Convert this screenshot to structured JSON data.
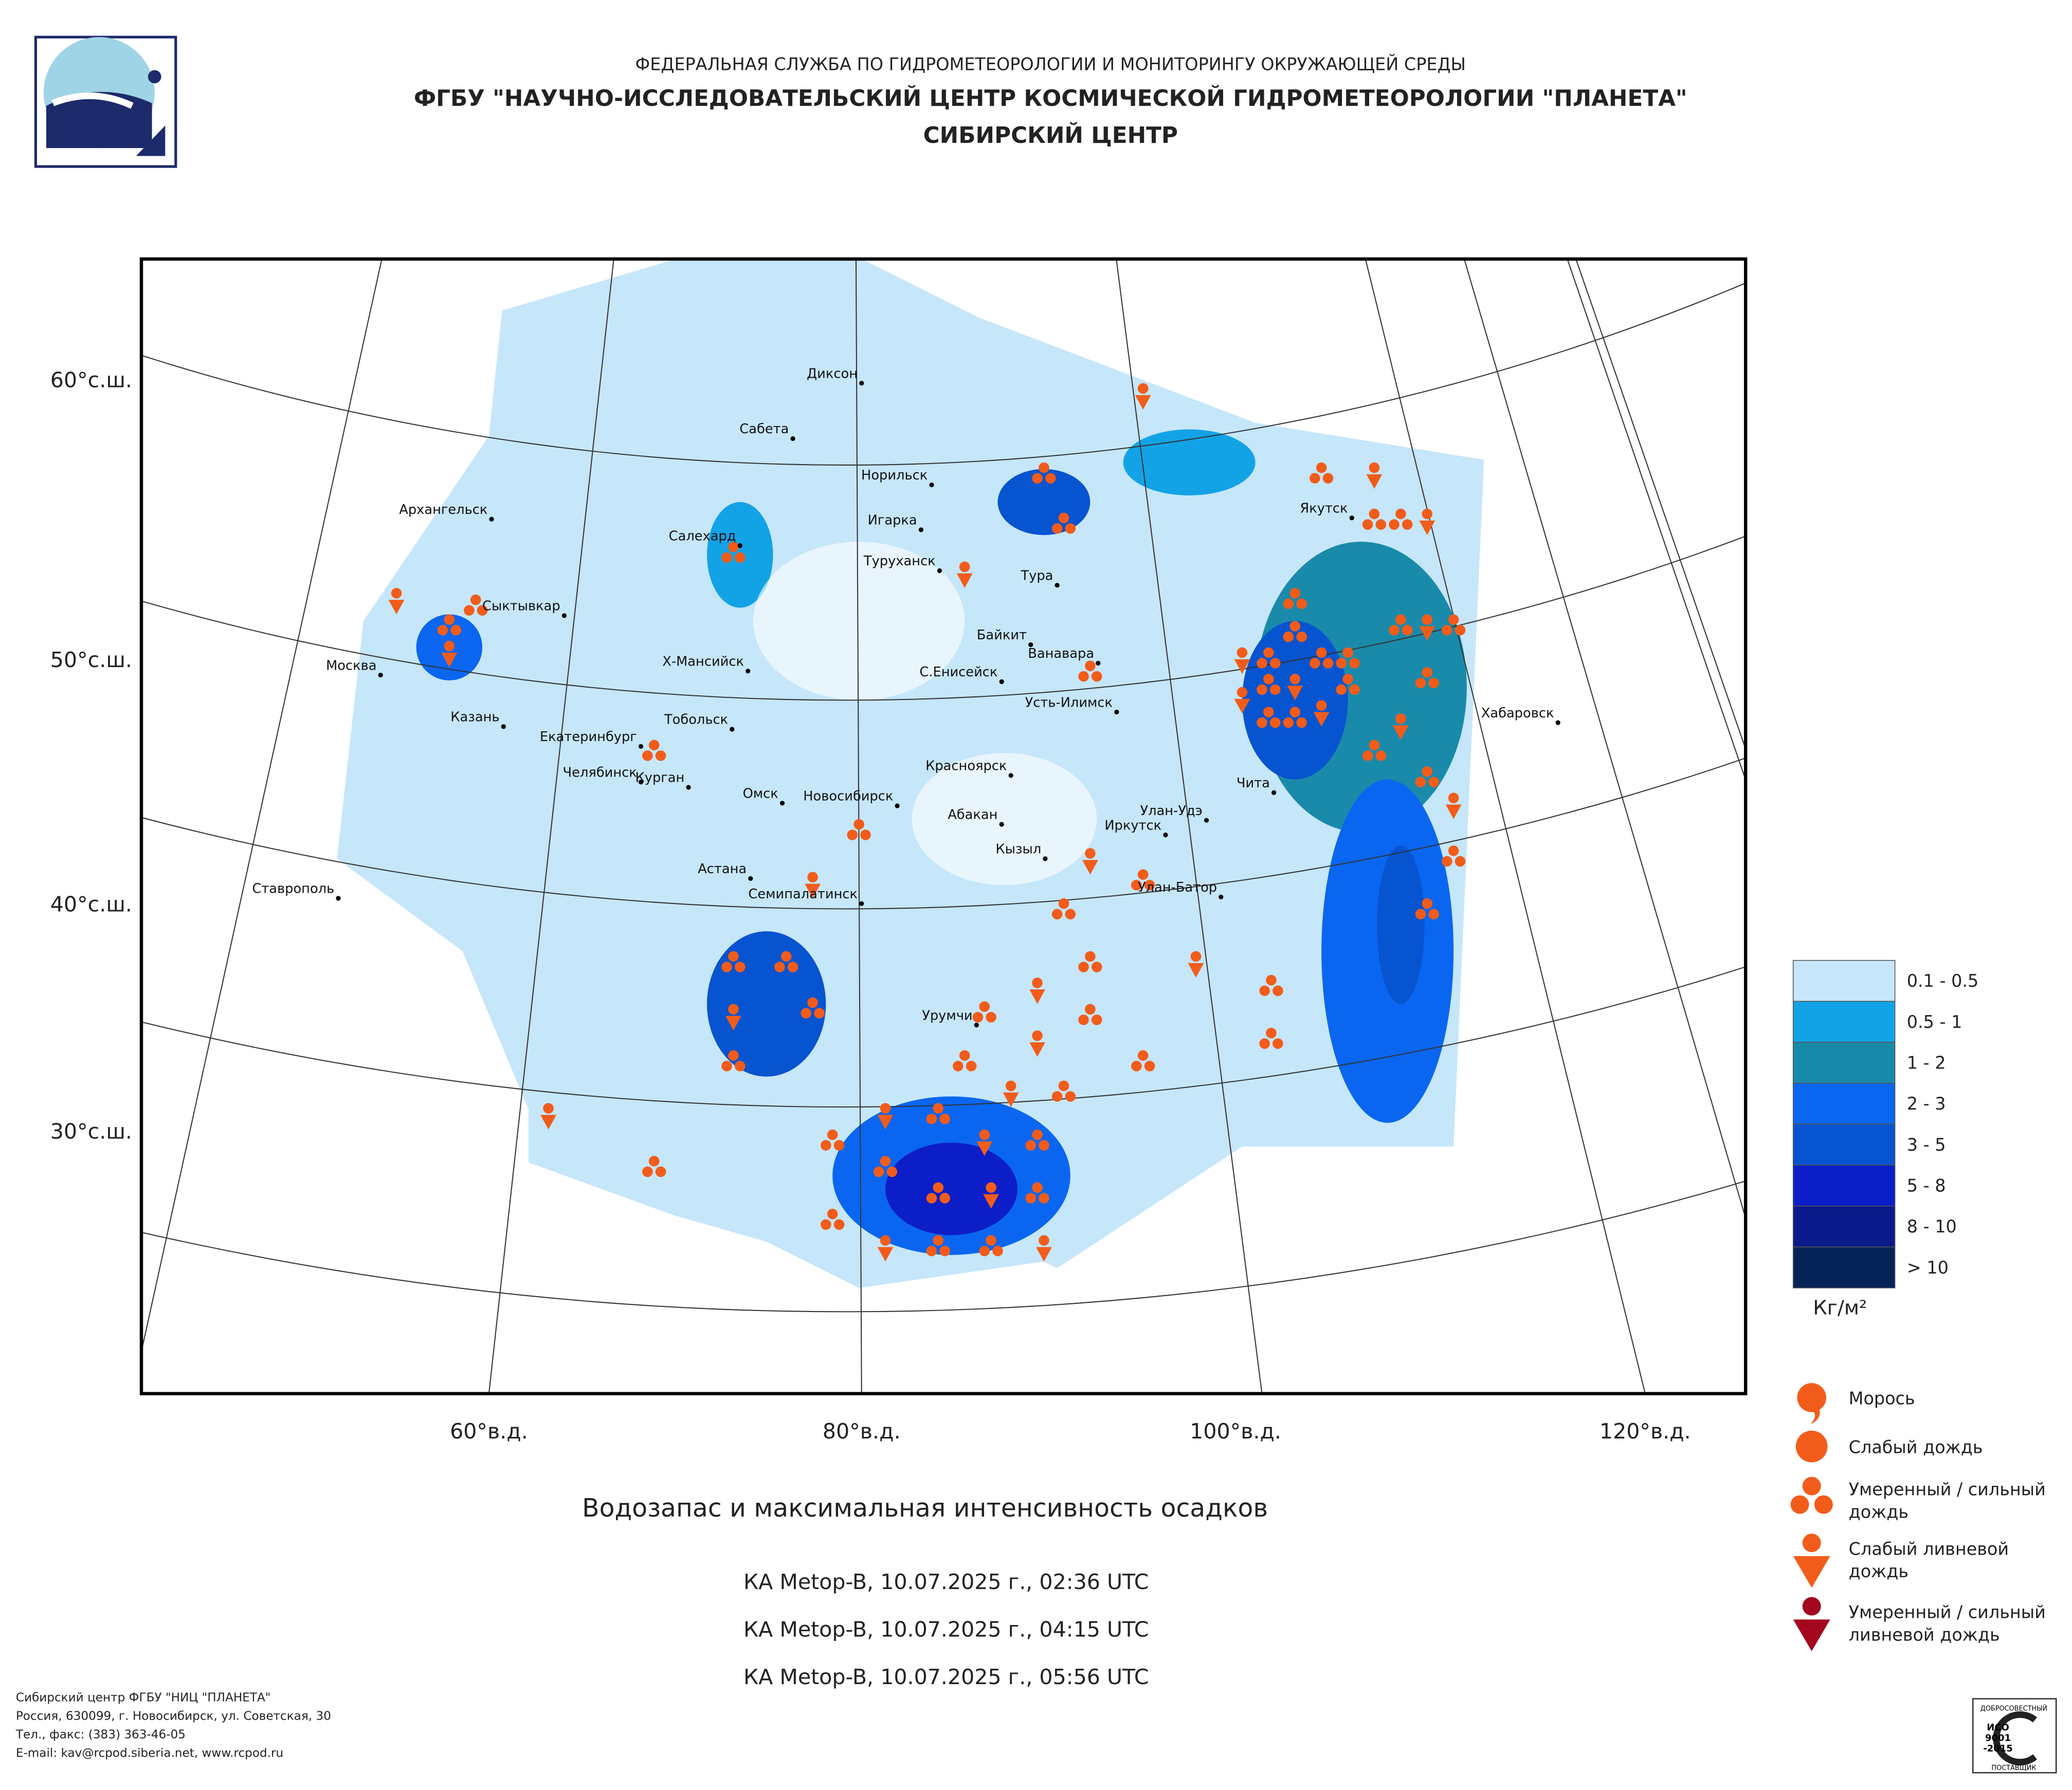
{
  "header": {
    "line1": "ФЕДЕРАЛЬНАЯ СЛУЖБА ПО ГИДРОМЕТЕОРОЛОГИИ И МОНИТОРИНГУ ОКРУЖАЮЩЕЙ СРЕДЫ",
    "line2": "ФГБУ \"НАУЧНО-ИССЛЕДОВАТЕЛЬСКИЙ ЦЕНТР КОСМИЧЕСКОЙ ГИДРОМЕТЕОРОЛОГИИ \"ПЛАНЕТА\"",
    "line3": "СИБИРСКИЙ ЦЕНТР"
  },
  "map": {
    "lat_labels": [
      "60°с.ш.",
      "50°с.ш.",
      "40°с.ш.",
      "30°с.ш."
    ],
    "lon_labels": [
      "60°в.д.",
      "80°в.д.",
      "100°в.д.",
      "120°в.д."
    ],
    "cities": [
      "Диксон",
      "Сабета",
      "Норильск",
      "Игарка",
      "Туруханск",
      "Тура",
      "Архангельск",
      "Салехард",
      "Сыктывкар",
      "Байкит",
      "Ванавара",
      "Москва",
      "Х-Мансийск",
      "С.Енисейск",
      "Усть-Илимск",
      "Казань",
      "Тобольск",
      "Екатеринбург",
      "Челябинск",
      "Курган",
      "Омск",
      "Новосибирск",
      "Красноярск",
      "Абакан",
      "Иркутск",
      "Улан-Удэ",
      "Кызыл",
      "Астана",
      "Семипалатинск",
      "Улан-Батор",
      "Ставрополь",
      "Урумчи",
      "Якутск",
      "Чита",
      "Хабаровск"
    ]
  },
  "water_legend": {
    "items": [
      {
        "label": "0.1 - 0.5",
        "color": "#c6e6fa"
      },
      {
        "label": "0.5 - 1",
        "color": "#12a3e6"
      },
      {
        "label": "1 - 2",
        "color": "#1a8aaa"
      },
      {
        "label": "2 - 3",
        "color": "#0a66f0"
      },
      {
        "label": "3 - 5",
        "color": "#0754d0"
      },
      {
        "label": "5 - 8",
        "color": "#0c1ec8"
      },
      {
        "label": "8 - 10",
        "color": "#0a1a8a"
      },
      {
        "label": "> 10",
        "color": "#062358"
      }
    ],
    "unit": "Кг/м²"
  },
  "precip_legend": [
    {
      "lines": [
        "Морось"
      ]
    },
    {
      "lines": [
        "Слабый дождь"
      ]
    },
    {
      "lines": [
        "Умеренный / сильный",
        "дождь"
      ]
    },
    {
      "lines": [
        "Слабый ливневой",
        "дождь"
      ]
    },
    {
      "lines": [
        "Умеренный / сильный",
        "ливневой дождь"
      ]
    }
  ],
  "title": "Водозапас и максимальная интенсивность осадков",
  "passes": [
    "КА Metop-B, 10.07.2025 г., 02:36 UTC",
    "КА Metop-B, 10.07.2025 г., 04:15 UTC",
    "КА Metop-B, 10.07.2025 г., 05:56 UTC"
  ],
  "footer": [
    "Сибирский центр ФГБУ \"НИЦ \"ПЛАНЕТА\"",
    "Россия, 630099, г. Новосибирск, ул. Советская, 30",
    "Тел., факс: (383) 363-46-05",
    "E-mail: kav@rcpod.siberia.net, www.rcpod.ru"
  ],
  "iso": {
    "top": "ДОБРОСОВЕСТНЫЙ",
    "l1": "ИСО",
    "l2": "9001",
    "l3": "-2015",
    "bottom": "ПОСТАВЩИК"
  }
}
